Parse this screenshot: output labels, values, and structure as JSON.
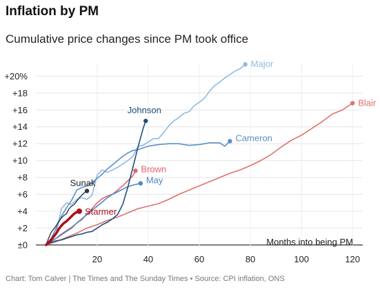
{
  "header": {
    "title": "Inflation by PM",
    "subtitle": "Cumulative price changes since PM took office"
  },
  "footer": {
    "source": "Chart: Tom Calver | The Times and The Sunday Times • Source: CPI inflation, ONS"
  },
  "chart_data": {
    "type": "line",
    "xlim": [
      -4,
      124
    ],
    "ylim": [
      -0.5,
      21.5
    ],
    "x_ticks": [
      20,
      40,
      60,
      80,
      100,
      120
    ],
    "y_ticks": [
      {
        "value": 0,
        "label": "±0"
      },
      {
        "value": 2,
        "label": "+2"
      },
      {
        "value": 4,
        "label": "+4"
      },
      {
        "value": 6,
        "label": "+6"
      },
      {
        "value": 8,
        "label": "+8"
      },
      {
        "value": 10,
        "label": "+10"
      },
      {
        "value": 12,
        "label": "+12"
      },
      {
        "value": 14,
        "label": "+14"
      },
      {
        "value": 16,
        "label": "+16"
      },
      {
        "value": 18,
        "label": "+18"
      },
      {
        "value": 20,
        "label": "+20%"
      }
    ],
    "x_note": "Months into being PM",
    "grid": true,
    "series": [
      {
        "name": "Major",
        "color": "#8dbbe3",
        "points": [
          [
            0,
            0
          ],
          [
            2,
            0.5
          ],
          [
            4,
            1.5
          ],
          [
            6,
            4.3
          ],
          [
            8,
            5.0
          ],
          [
            10,
            4.8
          ],
          [
            12,
            5.4
          ],
          [
            14,
            5.6
          ],
          [
            16,
            5.4
          ],
          [
            18,
            5.9
          ],
          [
            20,
            8.3
          ],
          [
            22,
            8.9
          ],
          [
            24,
            8.6
          ],
          [
            26,
            8.9
          ],
          [
            28,
            9.2
          ],
          [
            30,
            9.6
          ],
          [
            32,
            10.0
          ],
          [
            34,
            10.5
          ],
          [
            36,
            11.7
          ],
          [
            38,
            11.8
          ],
          [
            40,
            12.2
          ],
          [
            42,
            12.6
          ],
          [
            44,
            12.6
          ],
          [
            46,
            13.3
          ],
          [
            48,
            14.1
          ],
          [
            50,
            14.7
          ],
          [
            52,
            15.1
          ],
          [
            54,
            15.6
          ],
          [
            56,
            15.8
          ],
          [
            58,
            16.5
          ],
          [
            60,
            16.9
          ],
          [
            62,
            17.4
          ],
          [
            64,
            18.2
          ],
          [
            66,
            18.9
          ],
          [
            68,
            19.3
          ],
          [
            70,
            19.8
          ],
          [
            72,
            20.2
          ],
          [
            74,
            20.6
          ],
          [
            76,
            20.9
          ],
          [
            78,
            21.4
          ]
        ]
      },
      {
        "name": "Blair",
        "color": "#e0716d",
        "points": [
          [
            0,
            0
          ],
          [
            4,
            0.4
          ],
          [
            8,
            0.9
          ],
          [
            12,
            1.4
          ],
          [
            16,
            2.0
          ],
          [
            20,
            2.4
          ],
          [
            24,
            2.9
          ],
          [
            28,
            3.3
          ],
          [
            32,
            3.8
          ],
          [
            36,
            4.3
          ],
          [
            40,
            4.6
          ],
          [
            44,
            4.9
          ],
          [
            48,
            5.4
          ],
          [
            52,
            6.0
          ],
          [
            56,
            6.5
          ],
          [
            60,
            7.0
          ],
          [
            64,
            7.5
          ],
          [
            68,
            8.0
          ],
          [
            72,
            8.5
          ],
          [
            76,
            8.9
          ],
          [
            80,
            9.4
          ],
          [
            84,
            10.0
          ],
          [
            88,
            10.7
          ],
          [
            92,
            11.6
          ],
          [
            96,
            12.4
          ],
          [
            100,
            13.0
          ],
          [
            104,
            13.8
          ],
          [
            108,
            14.6
          ],
          [
            112,
            15.5
          ],
          [
            116,
            16.0
          ],
          [
            120,
            16.8
          ]
        ]
      },
      {
        "name": "Cameron",
        "color": "#5b8fc4",
        "points": [
          [
            0,
            0
          ],
          [
            2,
            0.8
          ],
          [
            4,
            2.0
          ],
          [
            6,
            3.4
          ],
          [
            8,
            4.4
          ],
          [
            10,
            5.3
          ],
          [
            12,
            6.5
          ],
          [
            14,
            6.8
          ],
          [
            16,
            7.0
          ],
          [
            18,
            7.4
          ],
          [
            20,
            7.9
          ],
          [
            22,
            8.4
          ],
          [
            24,
            9.0
          ],
          [
            26,
            9.5
          ],
          [
            28,
            10.0
          ],
          [
            30,
            10.5
          ],
          [
            32,
            10.9
          ],
          [
            34,
            11.2
          ],
          [
            36,
            11.3
          ],
          [
            38,
            11.5
          ],
          [
            40,
            11.7
          ],
          [
            44,
            11.9
          ],
          [
            48,
            12.0
          ],
          [
            52,
            12.0
          ],
          [
            56,
            11.8
          ],
          [
            60,
            11.9
          ],
          [
            64,
            12.1
          ],
          [
            68,
            12.1
          ],
          [
            70,
            11.7
          ],
          [
            72,
            12.3
          ]
        ]
      },
      {
        "name": "Brown",
        "color": "#e0666a",
        "points": [
          [
            0,
            0
          ],
          [
            2,
            0.4
          ],
          [
            4,
            0.8
          ],
          [
            6,
            1.3
          ],
          [
            8,
            1.7
          ],
          [
            10,
            2.1
          ],
          [
            12,
            2.6
          ],
          [
            14,
            3.0
          ],
          [
            16,
            3.7
          ],
          [
            18,
            4.3
          ],
          [
            20,
            5.0
          ],
          [
            22,
            5.5
          ],
          [
            24,
            5.8
          ],
          [
            26,
            6.0
          ],
          [
            28,
            6.5
          ],
          [
            30,
            7.0
          ],
          [
            32,
            7.6
          ],
          [
            34,
            8.2
          ],
          [
            35,
            8.8
          ]
        ]
      },
      {
        "name": "May",
        "color": "#4a88c2",
        "points": [
          [
            0,
            0
          ],
          [
            2,
            0.4
          ],
          [
            4,
            0.8
          ],
          [
            6,
            1.2
          ],
          [
            8,
            1.6
          ],
          [
            10,
            2.0
          ],
          [
            12,
            2.6
          ],
          [
            14,
            3.1
          ],
          [
            16,
            3.6
          ],
          [
            18,
            4.1
          ],
          [
            20,
            4.6
          ],
          [
            22,
            5.1
          ],
          [
            24,
            5.6
          ],
          [
            26,
            6.0
          ],
          [
            28,
            6.3
          ],
          [
            30,
            6.6
          ],
          [
            32,
            6.9
          ],
          [
            34,
            7.1
          ],
          [
            37,
            7.3
          ]
        ]
      },
      {
        "name": "Johnson",
        "color": "#1f4f7c",
        "points": [
          [
            0,
            0
          ],
          [
            2,
            0.3
          ],
          [
            4,
            0.5
          ],
          [
            6,
            0.6
          ],
          [
            8,
            0.8
          ],
          [
            10,
            1.0
          ],
          [
            12,
            1.2
          ],
          [
            14,
            1.3
          ],
          [
            16,
            1.5
          ],
          [
            18,
            1.6
          ],
          [
            20,
            2.0
          ],
          [
            22,
            2.4
          ],
          [
            24,
            2.7
          ],
          [
            26,
            3.1
          ],
          [
            28,
            3.6
          ],
          [
            30,
            4.8
          ],
          [
            32,
            6.8
          ],
          [
            34,
            9.2
          ],
          [
            36,
            11.6
          ],
          [
            38,
            13.8
          ],
          [
            39,
            14.7
          ]
        ]
      },
      {
        "name": "Sunak",
        "color": "#2b3a4a",
        "points": [
          [
            0,
            0
          ],
          [
            1,
            0.8
          ],
          [
            2,
            1.5
          ],
          [
            3,
            1.9
          ],
          [
            4,
            2.3
          ],
          [
            5,
            2.8
          ],
          [
            6,
            3.2
          ],
          [
            7,
            3.5
          ],
          [
            8,
            3.7
          ],
          [
            9,
            4.3
          ],
          [
            10,
            4.6
          ],
          [
            11,
            4.8
          ],
          [
            12,
            5.2
          ],
          [
            13,
            5.6
          ],
          [
            14,
            5.9
          ],
          [
            15,
            6.2
          ],
          [
            16,
            6.4
          ]
        ]
      },
      {
        "name": "Starmer",
        "color": "#a8121e",
        "points": [
          [
            0,
            0
          ],
          [
            1,
            0.3
          ],
          [
            2,
            0.6
          ],
          [
            3,
            1.0
          ],
          [
            4,
            1.4
          ],
          [
            5,
            1.9
          ],
          [
            6,
            2.3
          ],
          [
            7,
            2.6
          ],
          [
            8,
            2.8
          ],
          [
            9,
            3.1
          ],
          [
            10,
            3.4
          ],
          [
            11,
            3.7
          ],
          [
            12,
            3.9
          ],
          [
            13,
            4.0
          ]
        ]
      }
    ]
  }
}
